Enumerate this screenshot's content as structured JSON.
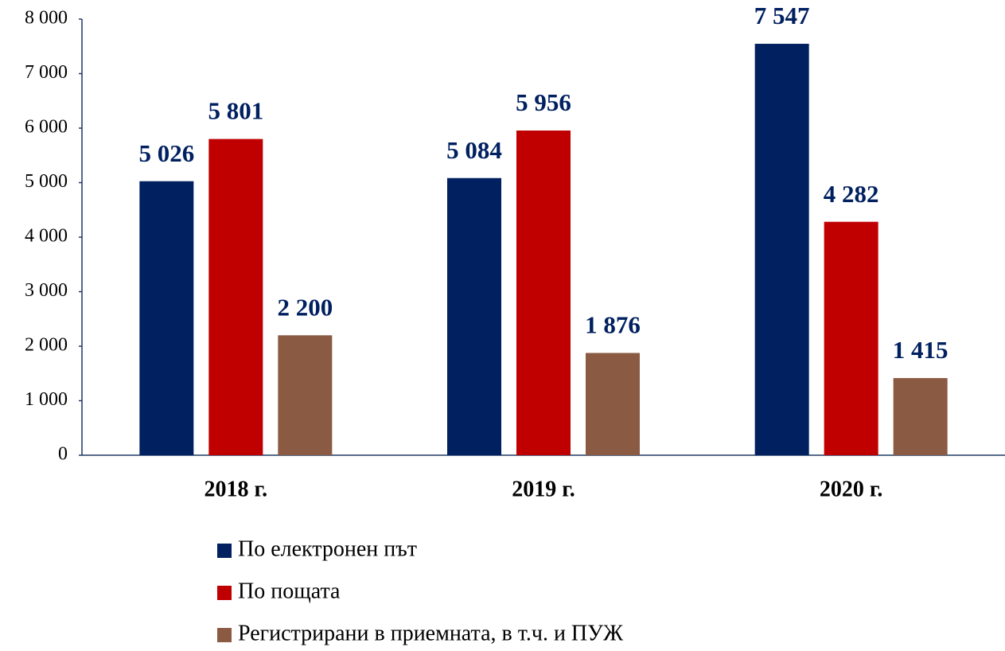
{
  "chart_data": {
    "type": "bar",
    "categories": [
      "2018 г.",
      "2019 г.",
      "2020 г."
    ],
    "series": [
      {
        "name": "По електронен път",
        "color": "#002060",
        "values": [
          5026,
          5084,
          7547
        ],
        "value_labels": [
          "5 026",
          "5 084",
          "7 547"
        ]
      },
      {
        "name": "По пощата",
        "color": "#c00000",
        "values": [
          5801,
          5956,
          4282
        ],
        "value_labels": [
          "5 801",
          "5 956",
          "4 282"
        ]
      },
      {
        "name": "Регистрирани в приемната, в т.ч. и ПУЖ",
        "color": "#8b5a43",
        "values": [
          2200,
          1876,
          1415
        ],
        "value_labels": [
          "2 200",
          "1 876",
          "1 415"
        ]
      }
    ],
    "ylim": [
      0,
      8000
    ],
    "yticks": [
      {
        "value": 0,
        "label": "0"
      },
      {
        "value": 1000,
        "label": "1 000"
      },
      {
        "value": 2000,
        "label": "2 000"
      },
      {
        "value": 3000,
        "label": "3 000"
      },
      {
        "value": 4000,
        "label": "4 000"
      },
      {
        "value": 5000,
        "label": "5 000"
      },
      {
        "value": 6000,
        "label": "6 000"
      },
      {
        "value": 7000,
        "label": "7 000"
      },
      {
        "value": 8000,
        "label": "8 000"
      }
    ],
    "grid": false,
    "legend": "bottom"
  }
}
